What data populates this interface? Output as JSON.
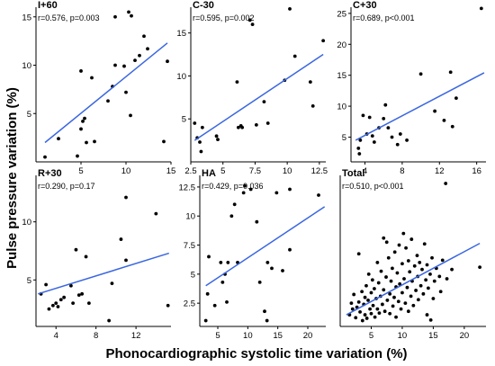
{
  "figure": {
    "ylabel": "Pulse pressure variation (%)",
    "xlabel": "Phonocardiographic systolic time variation (%)"
  },
  "colors": {
    "fit_line": "#3a66e0",
    "points": "#000000"
  },
  "chart_data": [
    {
      "type": "scatter",
      "title": "I+60",
      "stat": "r=0.576, p=0.003",
      "xlim": [
        0,
        15
      ],
      "ylim": [
        0,
        16
      ],
      "xticks": [
        5,
        10,
        15
      ],
      "yticks": [
        5,
        10,
        15
      ],
      "fit": [
        [
          1,
          2
        ],
        [
          14.6,
          12.3
        ]
      ],
      "points": [
        [
          1,
          0.5
        ],
        [
          2.5,
          2.4
        ],
        [
          4.6,
          0.6
        ],
        [
          5,
          3.4
        ],
        [
          5.2,
          4.2
        ],
        [
          5,
          9.4
        ],
        [
          5.4,
          4.5
        ],
        [
          5.6,
          2
        ],
        [
          6.2,
          8.7
        ],
        [
          6.5,
          2.1
        ],
        [
          8,
          6.3
        ],
        [
          8.5,
          7.8
        ],
        [
          8.8,
          10
        ],
        [
          8.8,
          15
        ],
        [
          9.8,
          9.9
        ],
        [
          10,
          7.2
        ],
        [
          10.3,
          15.5
        ],
        [
          10.6,
          15.1
        ],
        [
          10.5,
          4.8
        ],
        [
          11,
          10.5
        ],
        [
          11.5,
          11
        ],
        [
          12,
          13
        ],
        [
          12.4,
          11.7
        ],
        [
          14.2,
          2.1
        ],
        [
          14.6,
          10.4
        ]
      ]
    },
    {
      "type": "scatter",
      "title": "C-30",
      "stat": "r=0.595, p=0.002",
      "xlim": [
        2.5,
        13
      ],
      "ylim": [
        0,
        18
      ],
      "xticks": [
        2.5,
        5.0,
        7.5,
        10.0,
        12.5
      ],
      "yticks": [
        5,
        10,
        15
      ],
      "fit": [
        [
          2.8,
          2.5
        ],
        [
          12.8,
          12.5
        ]
      ],
      "points": [
        [
          2.8,
          4.5
        ],
        [
          3.0,
          2.8
        ],
        [
          3.2,
          2.3
        ],
        [
          3.3,
          1.2
        ],
        [
          3.4,
          4
        ],
        [
          4.5,
          3
        ],
        [
          4.6,
          2.6
        ],
        [
          6.1,
          9.3
        ],
        [
          6.2,
          4
        ],
        [
          6.4,
          4.2
        ],
        [
          6.5,
          4
        ],
        [
          7.1,
          16.5
        ],
        [
          7.3,
          16
        ],
        [
          7.6,
          4.3
        ],
        [
          8.2,
          7
        ],
        [
          8.5,
          4.5
        ],
        [
          9.8,
          9.5
        ],
        [
          10.2,
          17.8
        ],
        [
          10.6,
          12.3
        ],
        [
          11.8,
          9.3
        ],
        [
          12.0,
          6.5
        ],
        [
          12.8,
          14.1
        ]
      ]
    },
    {
      "type": "scatter",
      "title": "C+30",
      "stat": "r=0.689, p<0.001",
      "xlim": [
        2.5,
        17
      ],
      "ylim": [
        1,
        26
      ],
      "xticks": [
        4,
        8,
        12,
        16
      ],
      "yticks": [
        5,
        10,
        15,
        20,
        25
      ],
      "fit": [
        [
          3,
          4.5
        ],
        [
          16.8,
          15.4
        ]
      ],
      "points": [
        [
          3.3,
          3.2
        ],
        [
          3.4,
          2.3
        ],
        [
          3.5,
          4.5
        ],
        [
          3.8,
          8.5
        ],
        [
          4.2,
          5.5
        ],
        [
          4.5,
          8.2
        ],
        [
          4.8,
          5.2
        ],
        [
          5,
          4.2
        ],
        [
          5.5,
          6.5
        ],
        [
          6,
          8
        ],
        [
          6.2,
          10.2
        ],
        [
          6.5,
          6.5
        ],
        [
          6.9,
          5
        ],
        [
          7.5,
          3.8
        ],
        [
          7.8,
          5.5
        ],
        [
          8.5,
          4.5
        ],
        [
          10,
          15.2
        ],
        [
          11.5,
          9.2
        ],
        [
          12.5,
          7.7
        ],
        [
          13.2,
          15.5
        ],
        [
          13.4,
          6.7
        ],
        [
          13.8,
          11.3
        ],
        [
          16.5,
          25.8
        ]
      ]
    },
    {
      "type": "scatter",
      "title": "R+30",
      "stat": "r=0.290, p=0.17",
      "xlim": [
        2,
        15.5
      ],
      "ylim": [
        1,
        14
      ],
      "xticks": [
        4,
        8,
        12
      ],
      "yticks": [
        5,
        10
      ],
      "fit": [
        [
          2.2,
          3.8
        ],
        [
          15.3,
          7.3
        ]
      ],
      "points": [
        [
          2.5,
          3.8
        ],
        [
          3,
          4.6
        ],
        [
          3.3,
          2.5
        ],
        [
          3.7,
          2.8
        ],
        [
          4,
          3.0
        ],
        [
          4.2,
          2.7
        ],
        [
          4.5,
          3.3
        ],
        [
          4.8,
          3.5
        ],
        [
          5.5,
          4.5
        ],
        [
          5.7,
          3
        ],
        [
          6.0,
          7.6
        ],
        [
          6.3,
          3.7
        ],
        [
          6.6,
          3.8
        ],
        [
          7,
          7
        ],
        [
          7.3,
          3
        ],
        [
          9.3,
          1.5
        ],
        [
          9.6,
          4.7
        ],
        [
          10.5,
          8.5
        ],
        [
          11,
          6.7
        ],
        [
          11,
          12.1
        ],
        [
          14,
          10.7
        ],
        [
          15.2,
          2.8
        ]
      ]
    },
    {
      "type": "scatter",
      "title": "HA",
      "stat": "r=0.429, p=0.036",
      "xlim": [
        2,
        23
      ],
      "ylim": [
        0.5,
        13.5
      ],
      "xticks": [
        5,
        10,
        15,
        20
      ],
      "yticks": [
        2.5,
        5.0,
        7.5,
        10.0,
        12.5
      ],
      "fit": [
        [
          3,
          4
        ],
        [
          22.8,
          10.8
        ]
      ],
      "points": [
        [
          3,
          1
        ],
        [
          3.3,
          3.3
        ],
        [
          3.5,
          6.5
        ],
        [
          4.5,
          2.3
        ],
        [
          5.5,
          6
        ],
        [
          5.8,
          4.3
        ],
        [
          6.2,
          5
        ],
        [
          6.7,
          6
        ],
        [
          6.5,
          2.6
        ],
        [
          7.3,
          10
        ],
        [
          7.8,
          11
        ],
        [
          8.3,
          6
        ],
        [
          9.3,
          12
        ],
        [
          9.5,
          12.6
        ],
        [
          10.5,
          12.3
        ],
        [
          11.5,
          9.5
        ],
        [
          12,
          4.3
        ],
        [
          12.8,
          1.8
        ],
        [
          13.2,
          1
        ],
        [
          13.3,
          6
        ],
        [
          14,
          5.5
        ],
        [
          14.8,
          12
        ],
        [
          15.8,
          5.3
        ],
        [
          17,
          7.1
        ],
        [
          17,
          12.3
        ],
        [
          21.8,
          11.8
        ]
      ]
    },
    {
      "type": "scatter",
      "title": "Total",
      "stat": "r=0.510, p<0.001",
      "xlim": [
        0,
        23.5
      ],
      "ylim": [
        1,
        27
      ],
      "xticks": [
        5,
        10,
        15,
        20
      ],
      "yticks": [],
      "fit": [
        [
          1,
          3
        ],
        [
          22.5,
          15.3
        ]
      ],
      "points": [
        [
          1.5,
          3
        ],
        [
          1.8,
          5
        ],
        [
          2,
          4
        ],
        [
          2.2,
          6.5
        ],
        [
          2.5,
          2.5
        ],
        [
          2.7,
          4.3
        ],
        [
          3,
          5.2
        ],
        [
          3,
          13.5
        ],
        [
          3.2,
          3.5
        ],
        [
          3.5,
          7
        ],
        [
          3.6,
          2
        ],
        [
          3.8,
          4.8
        ],
        [
          4,
          6
        ],
        [
          4,
          3
        ],
        [
          4.2,
          8
        ],
        [
          4.3,
          2.4
        ],
        [
          4.5,
          5.5
        ],
        [
          4.6,
          10
        ],
        [
          4.8,
          4
        ],
        [
          5,
          6.8
        ],
        [
          5,
          3.2
        ],
        [
          5.2,
          9
        ],
        [
          5.3,
          4.6
        ],
        [
          5.5,
          7.5
        ],
        [
          5.6,
          2.6
        ],
        [
          5.8,
          5.8
        ],
        [
          6,
          12
        ],
        [
          6,
          4
        ],
        [
          6.2,
          8.5
        ],
        [
          6.3,
          3.3
        ],
        [
          6.5,
          6.2
        ],
        [
          6.6,
          10.5
        ],
        [
          6.8,
          4.8
        ],
        [
          7,
          16.2
        ],
        [
          7,
          7.3
        ],
        [
          7.2,
          3.6
        ],
        [
          7.4,
          9.5
        ],
        [
          7.5,
          15.5
        ],
        [
          7.6,
          5.5
        ],
        [
          7.8,
          12.8
        ],
        [
          8,
          6.6
        ],
        [
          8,
          3.2
        ],
        [
          8.2,
          8.8
        ],
        [
          8.4,
          11
        ],
        [
          8.5,
          4.5
        ],
        [
          8.7,
          6
        ],
        [
          8.8,
          13.8
        ],
        [
          9,
          7.8
        ],
        [
          9,
          2.6
        ],
        [
          9.2,
          10.2
        ],
        [
          9.4,
          5.3
        ],
        [
          9.5,
          15
        ],
        [
          9.6,
          8.3
        ],
        [
          9.8,
          4
        ],
        [
          10,
          11.8
        ],
        [
          10,
          6.8
        ],
        [
          10.2,
          17
        ],
        [
          10.3,
          9.2
        ],
        [
          10.5,
          5
        ],
        [
          10.6,
          14.5
        ],
        [
          10.8,
          7.7
        ],
        [
          11,
          12.3
        ],
        [
          11,
          3.6
        ],
        [
          11.2,
          10.4
        ],
        [
          11.4,
          6.2
        ],
        [
          11.5,
          16
        ],
        [
          11.6,
          8.8
        ],
        [
          11.8,
          4.6
        ],
        [
          12,
          11.4
        ],
        [
          12.2,
          7.2
        ],
        [
          12.4,
          13.2
        ],
        [
          12.5,
          9.6
        ],
        [
          12.6,
          5.6
        ],
        [
          12.8,
          12
        ],
        [
          13,
          8
        ],
        [
          13.2,
          10.8
        ],
        [
          13.4,
          6.6
        ],
        [
          13.6,
          15.2
        ],
        [
          13.8,
          9
        ],
        [
          14,
          11.6
        ],
        [
          14,
          3
        ],
        [
          14.2,
          7.6
        ],
        [
          14.5,
          10
        ],
        [
          14.6,
          2.1
        ],
        [
          14.8,
          12.8
        ],
        [
          15,
          5.8
        ],
        [
          15.2,
          8.8
        ],
        [
          15.5,
          11
        ],
        [
          16,
          9.6
        ],
        [
          16.2,
          7
        ],
        [
          16.5,
          12.4
        ],
        [
          17,
          25.6
        ],
        [
          17.2,
          9.2
        ],
        [
          18,
          10.8
        ],
        [
          22.5,
          11.2
        ]
      ]
    }
  ]
}
